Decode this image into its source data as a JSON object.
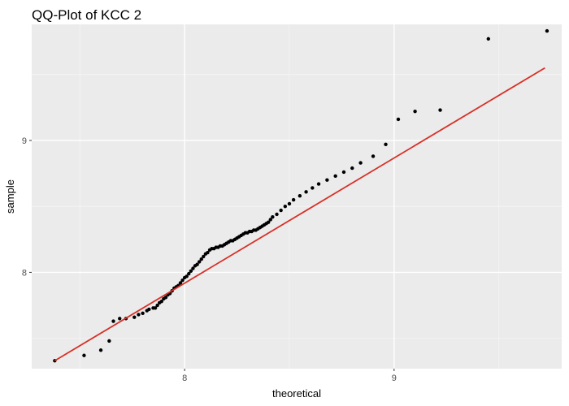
{
  "chart_data": {
    "type": "scatter",
    "title": "QQ-Plot of KCC 2",
    "xlabel": "theoretical",
    "ylabel": "sample",
    "xlim": [
      7.27,
      9.8
    ],
    "ylim": [
      7.27,
      9.88
    ],
    "x_ticks": [
      8,
      9
    ],
    "x_tick_labels": [
      "8",
      "9"
    ],
    "y_ticks": [
      8,
      9
    ],
    "y_tick_labels": [
      "8",
      "9"
    ],
    "x_minor": [
      7.5,
      8.5,
      9.5
    ],
    "y_minor": [
      7.5,
      8.5,
      9.5
    ],
    "grid": true,
    "legend": "none",
    "colors": {
      "panel": "#ebebeb",
      "grid_major": "#ffffff",
      "grid_minor": "#f5f5f5",
      "points": "#000000",
      "line": "#d73027"
    },
    "reference_line": {
      "x": [
        7.38,
        9.72
      ],
      "y": [
        7.33,
        9.55
      ]
    },
    "points": [
      [
        7.38,
        7.33
      ],
      [
        7.52,
        7.37
      ],
      [
        7.6,
        7.41
      ],
      [
        7.64,
        7.48
      ],
      [
        7.66,
        7.63
      ],
      [
        7.69,
        7.65
      ],
      [
        7.72,
        7.65
      ],
      [
        7.76,
        7.66
      ],
      [
        7.78,
        7.68
      ],
      [
        7.8,
        7.69
      ],
      [
        7.82,
        7.71
      ],
      [
        7.83,
        7.72
      ],
      [
        7.85,
        7.73
      ],
      [
        7.86,
        7.73
      ],
      [
        7.87,
        7.75
      ],
      [
        7.88,
        7.77
      ],
      [
        7.89,
        7.78
      ],
      [
        7.9,
        7.8
      ],
      [
        7.91,
        7.81
      ],
      [
        7.92,
        7.83
      ],
      [
        7.93,
        7.84
      ],
      [
        7.94,
        7.86
      ],
      [
        7.95,
        7.88
      ],
      [
        7.96,
        7.89
      ],
      [
        7.97,
        7.9
      ],
      [
        7.98,
        7.92
      ],
      [
        7.99,
        7.94
      ],
      [
        8.0,
        7.96
      ],
      [
        8.01,
        7.97
      ],
      [
        8.02,
        7.99
      ],
      [
        8.03,
        8.01
      ],
      [
        8.04,
        8.03
      ],
      [
        8.05,
        8.05
      ],
      [
        8.06,
        8.06
      ],
      [
        8.07,
        8.08
      ],
      [
        8.08,
        8.1
      ],
      [
        8.09,
        8.12
      ],
      [
        8.1,
        8.14
      ],
      [
        8.11,
        8.15
      ],
      [
        8.12,
        8.17
      ],
      [
        8.13,
        8.18
      ],
      [
        8.14,
        8.18
      ],
      [
        8.15,
        8.19
      ],
      [
        8.16,
        8.19
      ],
      [
        8.17,
        8.2
      ],
      [
        8.18,
        8.2
      ],
      [
        8.19,
        8.21
      ],
      [
        8.2,
        8.22
      ],
      [
        8.21,
        8.23
      ],
      [
        8.22,
        8.24
      ],
      [
        8.23,
        8.24
      ],
      [
        8.24,
        8.25
      ],
      [
        8.25,
        8.26
      ],
      [
        8.26,
        8.27
      ],
      [
        8.27,
        8.28
      ],
      [
        8.28,
        8.29
      ],
      [
        8.29,
        8.3
      ],
      [
        8.3,
        8.3
      ],
      [
        8.31,
        8.31
      ],
      [
        8.32,
        8.31
      ],
      [
        8.33,
        8.32
      ],
      [
        8.34,
        8.32
      ],
      [
        8.35,
        8.33
      ],
      [
        8.36,
        8.34
      ],
      [
        8.37,
        8.35
      ],
      [
        8.38,
        8.36
      ],
      [
        8.39,
        8.37
      ],
      [
        8.4,
        8.38
      ],
      [
        8.41,
        8.4
      ],
      [
        8.42,
        8.42
      ],
      [
        8.44,
        8.44
      ],
      [
        8.46,
        8.47
      ],
      [
        8.48,
        8.5
      ],
      [
        8.5,
        8.52
      ],
      [
        8.52,
        8.55
      ],
      [
        8.55,
        8.58
      ],
      [
        8.58,
        8.61
      ],
      [
        8.61,
        8.64
      ],
      [
        8.64,
        8.67
      ],
      [
        8.68,
        8.7
      ],
      [
        8.72,
        8.73
      ],
      [
        8.76,
        8.76
      ],
      [
        8.8,
        8.79
      ],
      [
        8.84,
        8.83
      ],
      [
        8.9,
        8.88
      ],
      [
        8.96,
        8.97
      ],
      [
        9.02,
        9.16
      ],
      [
        9.1,
        9.22
      ],
      [
        9.22,
        9.23
      ],
      [
        9.45,
        9.77
      ],
      [
        9.73,
        9.83
      ]
    ]
  }
}
